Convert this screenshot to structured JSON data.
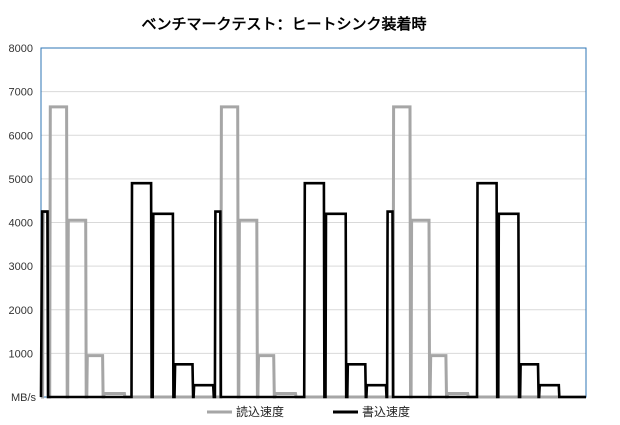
{
  "chart_data": {
    "type": "line",
    "title": "ベンチマークテスト：ヒートシンク装着時",
    "ylabel": "MB/s",
    "xlabel": "",
    "ylim": [
      0,
      8000
    ],
    "yticks": [
      1000,
      2000,
      3000,
      4000,
      5000,
      6000,
      7000,
      8000
    ],
    "xlim": [
      0,
      100
    ],
    "grid": true,
    "legend_position": "bottom",
    "series": [
      {
        "name": "読込速度",
        "color": "#a6a6a6",
        "points": [
          [
            0,
            0
          ],
          [
            0.3,
            0
          ],
          [
            0.4,
            4250
          ],
          [
            1.2,
            4250
          ],
          [
            1.3,
            0
          ],
          [
            1.6,
            0
          ],
          [
            1.7,
            6650
          ],
          [
            4.7,
            6650
          ],
          [
            4.8,
            0
          ],
          [
            4.9,
            0
          ],
          [
            5.0,
            4050
          ],
          [
            8.2,
            4050
          ],
          [
            8.3,
            0
          ],
          [
            8.4,
            0
          ],
          [
            8.5,
            950
          ],
          [
            11.3,
            950
          ],
          [
            11.4,
            0
          ],
          [
            11.5,
            0
          ],
          [
            11.6,
            80
          ],
          [
            15.3,
            80
          ],
          [
            15.4,
            0
          ],
          [
            33.0,
            0
          ],
          [
            33.1,
            6650
          ],
          [
            36.1,
            6650
          ],
          [
            36.2,
            0
          ],
          [
            36.3,
            0
          ],
          [
            36.4,
            4050
          ],
          [
            39.6,
            4050
          ],
          [
            39.7,
            0
          ],
          [
            39.8,
            0
          ],
          [
            39.9,
            950
          ],
          [
            42.7,
            950
          ],
          [
            42.8,
            0
          ],
          [
            42.9,
            0
          ],
          [
            43.0,
            80
          ],
          [
            46.7,
            80
          ],
          [
            46.8,
            0
          ],
          [
            64.6,
            0
          ],
          [
            64.7,
            6650
          ],
          [
            67.7,
            6650
          ],
          [
            67.8,
            0
          ],
          [
            67.9,
            0
          ],
          [
            68.0,
            4050
          ],
          [
            71.2,
            4050
          ],
          [
            71.3,
            0
          ],
          [
            71.4,
            0
          ],
          [
            71.5,
            950
          ],
          [
            74.3,
            950
          ],
          [
            74.4,
            0
          ],
          [
            74.5,
            0
          ],
          [
            74.6,
            80
          ],
          [
            78.3,
            80
          ],
          [
            78.4,
            0
          ],
          [
            100,
            0
          ]
        ]
      },
      {
        "name": "書込速度",
        "color": "#000000",
        "points": [
          [
            0,
            0
          ],
          [
            0.2,
            4250
          ],
          [
            1.2,
            4250
          ],
          [
            1.3,
            0
          ],
          [
            16.6,
            0
          ],
          [
            16.7,
            4900
          ],
          [
            20.2,
            4900
          ],
          [
            20.3,
            0
          ],
          [
            20.5,
            0
          ],
          [
            20.6,
            4200
          ],
          [
            24.2,
            4200
          ],
          [
            24.3,
            0
          ],
          [
            24.5,
            0
          ],
          [
            24.6,
            750
          ],
          [
            27.8,
            750
          ],
          [
            27.9,
            0
          ],
          [
            28.0,
            0
          ],
          [
            28.1,
            270
          ],
          [
            31.6,
            270
          ],
          [
            31.7,
            0
          ],
          [
            31.9,
            0
          ],
          [
            32.0,
            4250
          ],
          [
            32.9,
            4250
          ],
          [
            33.0,
            0
          ],
          [
            48.3,
            0
          ],
          [
            48.4,
            4900
          ],
          [
            51.9,
            4900
          ],
          [
            52.0,
            0
          ],
          [
            52.2,
            0
          ],
          [
            52.3,
            4200
          ],
          [
            55.9,
            4200
          ],
          [
            56.0,
            0
          ],
          [
            56.2,
            0
          ],
          [
            56.3,
            750
          ],
          [
            59.5,
            750
          ],
          [
            59.6,
            0
          ],
          [
            59.7,
            0
          ],
          [
            59.8,
            270
          ],
          [
            63.3,
            270
          ],
          [
            63.4,
            0
          ],
          [
            63.5,
            0
          ],
          [
            63.6,
            4250
          ],
          [
            64.5,
            4250
          ],
          [
            64.6,
            0
          ],
          [
            80.0,
            0
          ],
          [
            80.1,
            4900
          ],
          [
            83.6,
            4900
          ],
          [
            83.7,
            0
          ],
          [
            83.9,
            0
          ],
          [
            84.0,
            4200
          ],
          [
            87.6,
            4200
          ],
          [
            87.7,
            0
          ],
          [
            87.9,
            0
          ],
          [
            88.0,
            750
          ],
          [
            91.2,
            750
          ],
          [
            91.3,
            0
          ],
          [
            91.4,
            0
          ],
          [
            91.5,
            270
          ],
          [
            95.0,
            270
          ],
          [
            95.1,
            0
          ],
          [
            100,
            0
          ]
        ]
      }
    ]
  }
}
